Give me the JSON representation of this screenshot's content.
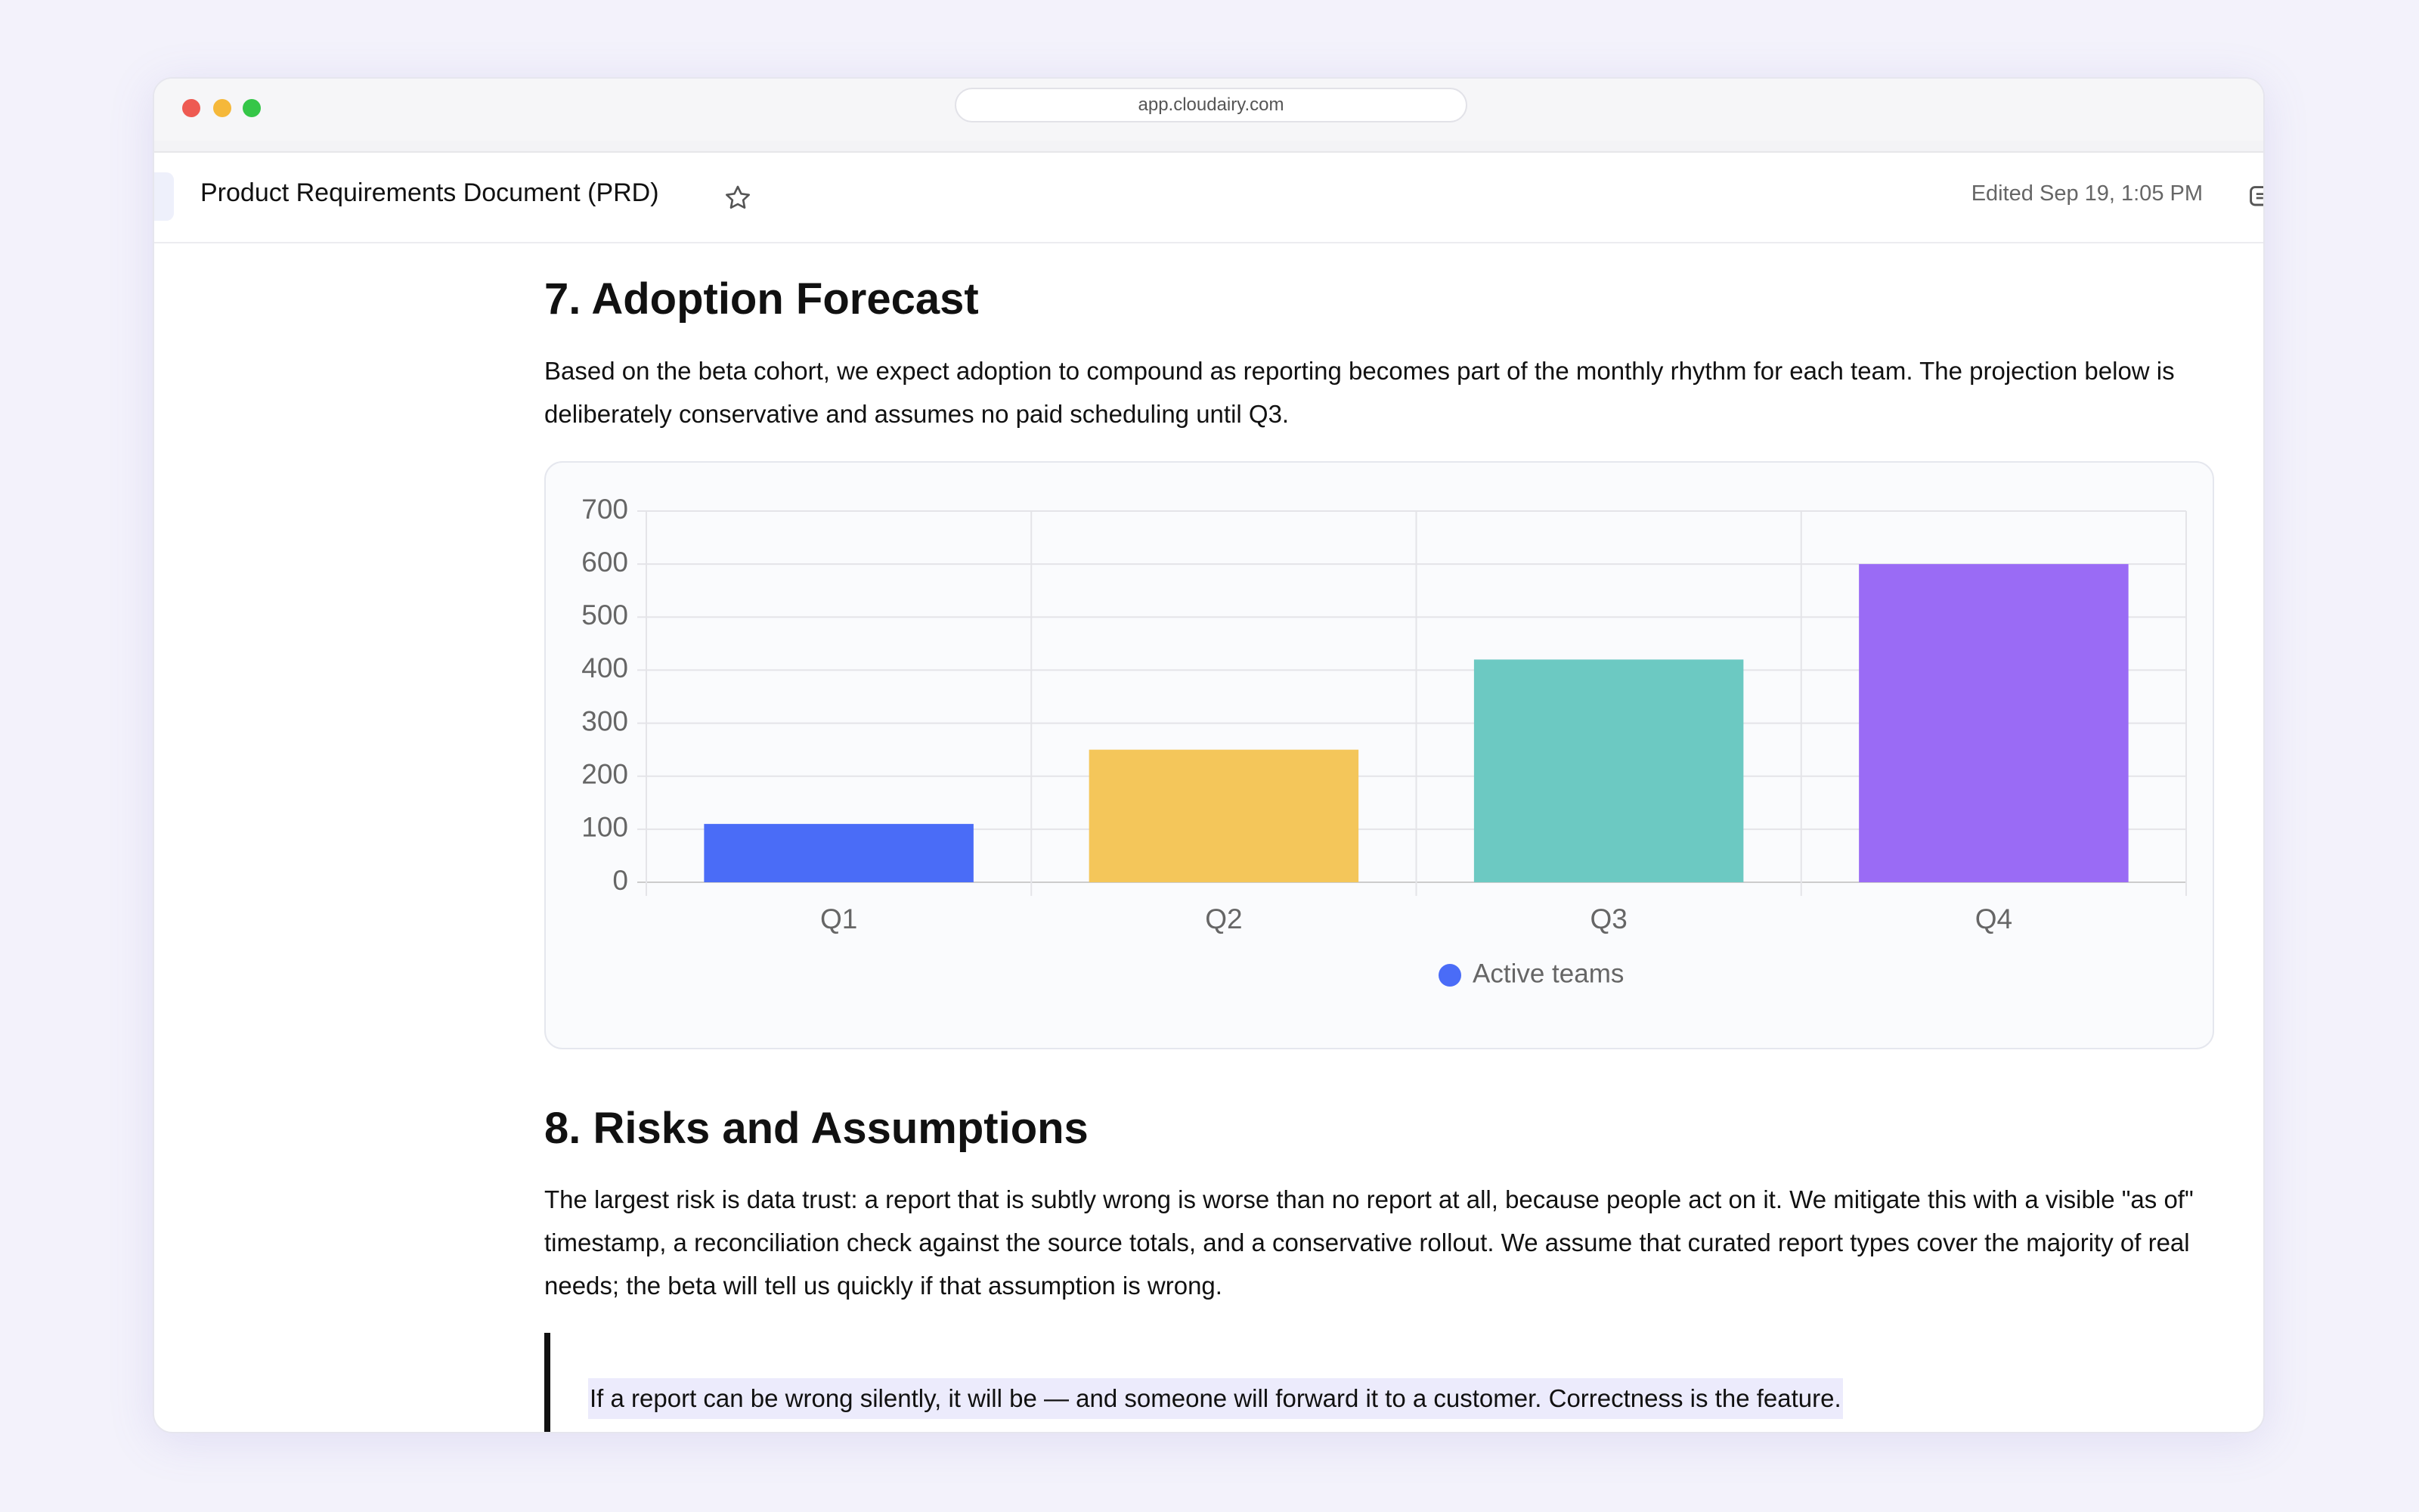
{
  "browser": {
    "url": "app.cloudairy.com"
  },
  "header": {
    "title": "Product Requirements Document (PRD)",
    "edited": "Edited Sep 19, 1:05 PM"
  },
  "sections": [
    {
      "heading": "7. Adoption Forecast",
      "paragraph": "Based on the beta cohort, we expect adoption to compound as reporting becomes part of the monthly rhythm for each team. The projection below is deliberately conservative and assumes no paid scheduling until Q3."
    },
    {
      "heading": "8. Risks and Assumptions",
      "paragraph": "The largest risk is data trust: a report that is subtly wrong is worse than no report at all, because people act on it. We mitigate this with a visible \"as of\" timestamp, a reconciliation check against the source totals, and a conservative rollout. We assume that curated report types cover the majority of real needs; the beta will tell us quickly if that assumption is wrong.",
      "quote": "If a report can be wrong silently, it will be — and someone will forward it to a customer. Correctness is the feature."
    }
  ],
  "chart_data": {
    "type": "bar",
    "categories": [
      "Q1",
      "Q2",
      "Q3",
      "Q4"
    ],
    "series": [
      {
        "name": "Active teams",
        "color": "#4a6cf7",
        "values": [
          110,
          250,
          420,
          600
        ]
      }
    ],
    "colors": [
      "#4a6cf7",
      "#f4c65a",
      "#6cc9c2",
      "#9a6bf5"
    ],
    "ylim": [
      0,
      700
    ],
    "yticks": [
      0,
      100,
      200,
      300,
      400,
      500,
      600,
      700
    ],
    "grid": true,
    "legend": "bottom"
  }
}
